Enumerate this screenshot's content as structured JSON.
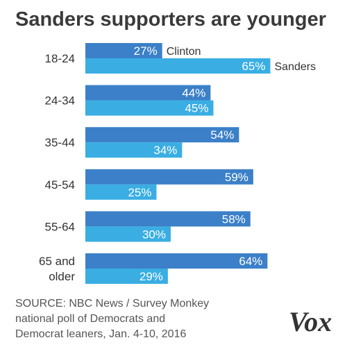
{
  "chart_data": {
    "type": "bar",
    "orientation": "horizontal",
    "title": "Sanders supporters are younger",
    "categories": [
      [
        "18-24"
      ],
      [
        "24-34"
      ],
      [
        "35-44"
      ],
      [
        "45-54"
      ],
      [
        "55-64"
      ],
      [
        "65 and",
        "older"
      ]
    ],
    "series": [
      {
        "name": "Clinton",
        "values": [
          27,
          44,
          54,
          59,
          58,
          64
        ],
        "color": "#3b80c8"
      },
      {
        "name": "Sanders",
        "values": [
          65,
          45,
          34,
          25,
          30,
          29
        ],
        "color": "#3aaee3"
      }
    ],
    "value_suffix": "%",
    "xlim": [
      0,
      100
    ],
    "grid": false,
    "legend": "inline labels on first group"
  },
  "source": [
    "SOURCE: NBC News / Survey Monkey",
    "national poll of Democrats and",
    "Democrat leaners, Jan. 4-10, 2016"
  ],
  "logo": "Vox"
}
